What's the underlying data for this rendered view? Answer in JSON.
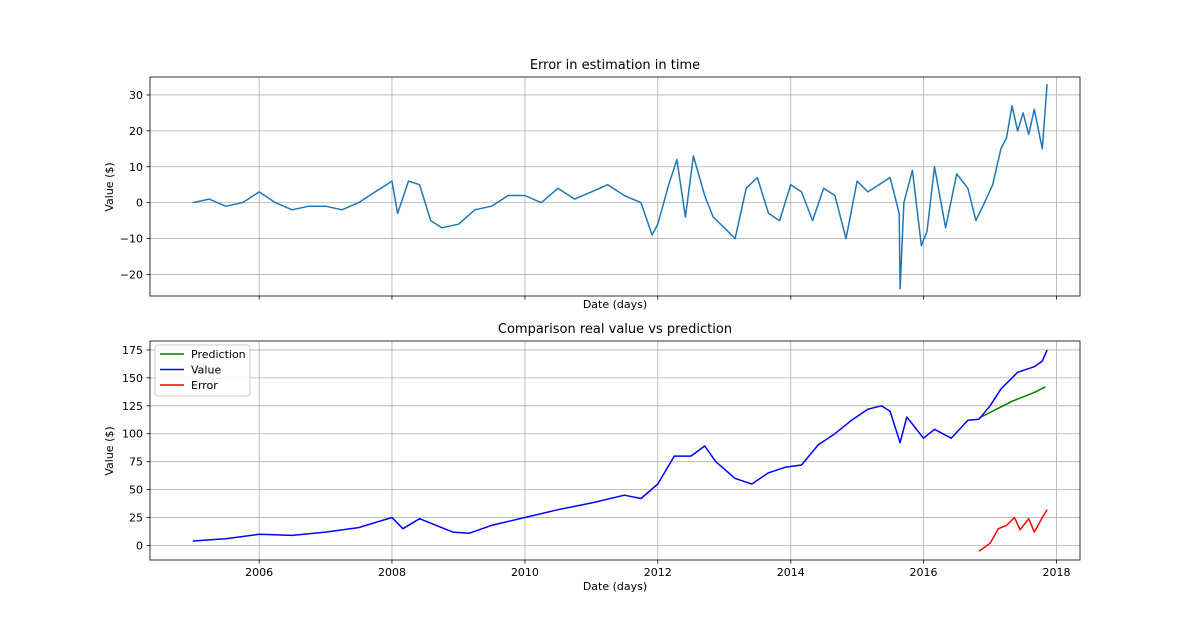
{
  "chart_data": [
    {
      "type": "line",
      "title": "Error in estimation in time",
      "xlabel": "Date (days)",
      "ylabel": "Value ($)",
      "xlim": [
        "2004-05-11",
        "2018-05-10"
      ],
      "ylim": [
        -26,
        35
      ],
      "yticks": [
        -20,
        -10,
        0,
        10,
        20,
        30
      ],
      "xticks": [
        "2006",
        "2008",
        "2010",
        "2012",
        "2014",
        "2016",
        "2018"
      ],
      "xtick_labels_visible": false,
      "grid": true,
      "series": [
        {
          "color": "#1f77b4",
          "x": [
            "2005-01-01",
            "2005-04-01",
            "2005-07-01",
            "2005-10-01",
            "2006-01-01",
            "2006-04-01",
            "2006-07-01",
            "2006-10-01",
            "2007-01-01",
            "2007-04-01",
            "2007-07-01",
            "2007-10-01",
            "2008-01-01",
            "2008-02-01",
            "2008-04-01",
            "2008-06-01",
            "2008-08-01",
            "2008-10-01",
            "2009-01-01",
            "2009-04-01",
            "2009-07-01",
            "2009-10-01",
            "2010-01-01",
            "2010-04-01",
            "2010-07-01",
            "2010-10-01",
            "2011-01-01",
            "2011-04-01",
            "2011-07-01",
            "2011-10-01",
            "2011-12-01",
            "2012-01-01",
            "2012-03-01",
            "2012-04-15",
            "2012-06-01",
            "2012-07-15",
            "2012-09-15",
            "2012-11-01",
            "2013-01-01",
            "2013-03-01",
            "2013-05-01",
            "2013-07-01",
            "2013-09-01",
            "2013-11-01",
            "2014-01-01",
            "2014-03-01",
            "2014-05-01",
            "2014-07-01",
            "2014-09-01",
            "2014-11-01",
            "2015-01-01",
            "2015-03-01",
            "2015-05-01",
            "2015-07-01",
            "2015-08-20",
            "2015-08-25",
            "2015-09-15",
            "2015-11-01",
            "2015-12-20",
            "2016-01-20",
            "2016-03-01",
            "2016-05-01",
            "2016-07-01",
            "2016-09-01",
            "2016-10-15",
            "2016-12-01",
            "2017-01-15",
            "2017-03-01",
            "2017-04-01",
            "2017-05-01",
            "2017-06-01",
            "2017-07-01",
            "2017-08-01",
            "2017-09-01",
            "2017-10-15",
            "2017-11-10"
          ],
          "y": [
            0,
            1,
            -1,
            0,
            3,
            0,
            -2,
            -1,
            -1,
            -2,
            0,
            3,
            6,
            -3,
            6,
            5,
            -5,
            -7,
            -6,
            -2,
            -1,
            2,
            2,
            0,
            4,
            1,
            3,
            5,
            2,
            0,
            -9,
            -6,
            5,
            12,
            -4,
            13,
            2,
            -4,
            -7,
            -10,
            4,
            7,
            -3,
            -5,
            5,
            3,
            -5,
            4,
            2,
            -10,
            6,
            3,
            5,
            7,
            -3,
            -24,
            0,
            9,
            -12,
            -8,
            10,
            -7,
            8,
            4,
            -5,
            0,
            5,
            15,
            18,
            27,
            20,
            25,
            19,
            26,
            15,
            33
          ]
        }
      ]
    },
    {
      "type": "line",
      "title": "Comparison real value vs prediction",
      "xlabel": "Date (days)",
      "ylabel": "Value ($)",
      "xlim": [
        "2004-05-11",
        "2018-05-10"
      ],
      "ylim": [
        -13,
        183
      ],
      "yticks": [
        0,
        25,
        50,
        75,
        100,
        125,
        150,
        175
      ],
      "xticks": [
        "2006",
        "2008",
        "2010",
        "2012",
        "2014",
        "2016",
        "2018"
      ],
      "grid": true,
      "legend": "top-left",
      "series": [
        {
          "name": "Prediction",
          "color": "#008000",
          "x": [
            "2016-11-01",
            "2017-01-01",
            "2017-03-01",
            "2017-05-01",
            "2017-07-01",
            "2017-09-01",
            "2017-11-01"
          ],
          "y": [
            114,
            119,
            124,
            129,
            133,
            137,
            142
          ]
        },
        {
          "name": "Value",
          "color": "#0000ff",
          "x": [
            "2005-01-01",
            "2005-07-01",
            "2006-01-01",
            "2006-07-01",
            "2007-01-01",
            "2007-07-01",
            "2008-01-01",
            "2008-03-01",
            "2008-06-01",
            "2008-09-01",
            "2008-12-01",
            "2009-03-01",
            "2009-07-01",
            "2010-01-01",
            "2010-07-01",
            "2011-01-01",
            "2011-07-01",
            "2011-10-01",
            "2012-01-01",
            "2012-04-01",
            "2012-07-01",
            "2012-09-15",
            "2012-11-15",
            "2013-03-01",
            "2013-06-01",
            "2013-09-01",
            "2013-12-01",
            "2014-03-01",
            "2014-06-01",
            "2014-09-01",
            "2014-12-01",
            "2015-03-01",
            "2015-05-15",
            "2015-07-01",
            "2015-08-25",
            "2015-10-01",
            "2016-01-01",
            "2016-03-01",
            "2016-06-01",
            "2016-09-01",
            "2016-11-01",
            "2017-01-01",
            "2017-03-01",
            "2017-06-01",
            "2017-09-01",
            "2017-10-15",
            "2017-11-10"
          ],
          "y": [
            4,
            6,
            10,
            9,
            12,
            16,
            25,
            15,
            24,
            18,
            12,
            11,
            18,
            25,
            32,
            38,
            45,
            42,
            55,
            80,
            80,
            89,
            75,
            60,
            55,
            65,
            70,
            72,
            90,
            100,
            112,
            122,
            125,
            120,
            92,
            115,
            96,
            104,
            96,
            112,
            113,
            125,
            140,
            155,
            160,
            165,
            175
          ]
        },
        {
          "name": "Error",
          "color": "#ff0000",
          "x": [
            "2016-11-01",
            "2016-11-20",
            "2017-01-01",
            "2017-02-15",
            "2017-04-01",
            "2017-05-15",
            "2017-06-15",
            "2017-08-01",
            "2017-09-01",
            "2017-10-15",
            "2017-11-10"
          ],
          "y": [
            -5,
            -3,
            2,
            15,
            18,
            25,
            14,
            24,
            12,
            25,
            32
          ]
        }
      ]
    }
  ]
}
